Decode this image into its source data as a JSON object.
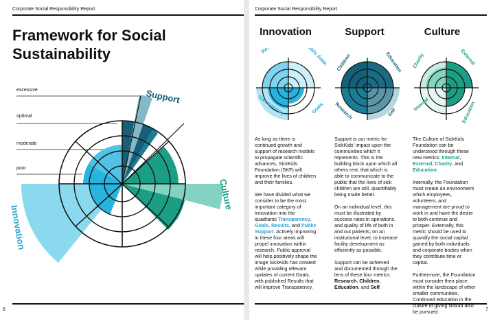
{
  "header": {
    "left": "Corporate Social Responsibility Report",
    "right": "Corporate Social Responsibility Report"
  },
  "page_numbers": {
    "left": "6",
    "right": "7"
  },
  "left_page": {
    "title_line1": "Framework for Social",
    "title_line2": "Sustainability",
    "levels": [
      "excessive",
      "optimal",
      "moderate",
      "poor"
    ],
    "labels": {
      "support": "Support",
      "culture": "Culture",
      "innovation": "Innovation"
    }
  },
  "columns": [
    {
      "title": "Innovation",
      "quadrants": [
        "Results",
        "Public Support",
        "Transparency",
        "Goals"
      ],
      "p1": "As long as there is continued growth and support of research models to propagate scientific advances, SickKids Foundation (SKF) will improve the lives of children and their families.",
      "p2_a": "We have divided what we consider to be the most important category of Innovation into the quadrants ",
      "hl1": "Transparency",
      "sep1": ", ",
      "hl2": "Goals",
      "sep2": ", ",
      "hl3": "Results",
      "sep3": ", and ",
      "hl4": "Public Support",
      "p2_b": ". Actively improving in these four areas will propel innovation within research. Public approval will help positively shape the image SickKids has created while providing relevant updates of current Goals, with published Results that will improve Transparency."
    },
    {
      "title": "Support",
      "quadrants": [
        "Children",
        "Education",
        "Research",
        "Self"
      ],
      "p1": "Support is our metric for SickKids' impact upon the communities which it represents. This is the building block upon which all others rest, that which is able to communicate to the public that the lives of sick children are still, quantifiably being made better.",
      "p2": "On an individual level, this must be illustrated by success rates in operations, and quality of life of both in and out patients; on an institutional level, to increase facility development as efficiently as possible.",
      "p3_a": "Support can be achieved and documented through the lens of these four metrics: ",
      "b1": "Research",
      "sep1": ", ",
      "b2": "Children",
      "sep2": ", ",
      "b3": "Education",
      "sep3": ", and ",
      "b4": "Self",
      "end": "."
    },
    {
      "title": "Culture",
      "quadrants": [
        "Charity",
        "External",
        "Internal",
        "Education"
      ],
      "p1_a": "The Culture of SickKids Foundation can be understood through these new metrics: ",
      "g1": "Internal",
      "sep1": ", ",
      "g2": "External",
      "sep2": ", ",
      "g3": "Charity",
      "sep3": ", and ",
      "g4": "Education",
      "end": ".",
      "p2": "Internally, the Foundation must create an environment which employees, volunteers, and management are proud to work in and have the desire to both continue and prosper. Externally, this metric should be used to quantify the social capital gained by both individuals and corporate bodies when they contribute time or capital.",
      "p3": "Furthermore, the Foundation must consider their place within the landscape of other smaller communities. Continued education in the culture of giving should also be pursued."
    }
  ],
  "colors": {
    "innovation_dark": "#1fa6d6",
    "innovation_light": "#7fd3ee",
    "support_dark": "#155f78",
    "support_light": "#86b9c7",
    "culture_dark": "#1c9e84",
    "culture_light": "#84d3c2"
  }
}
